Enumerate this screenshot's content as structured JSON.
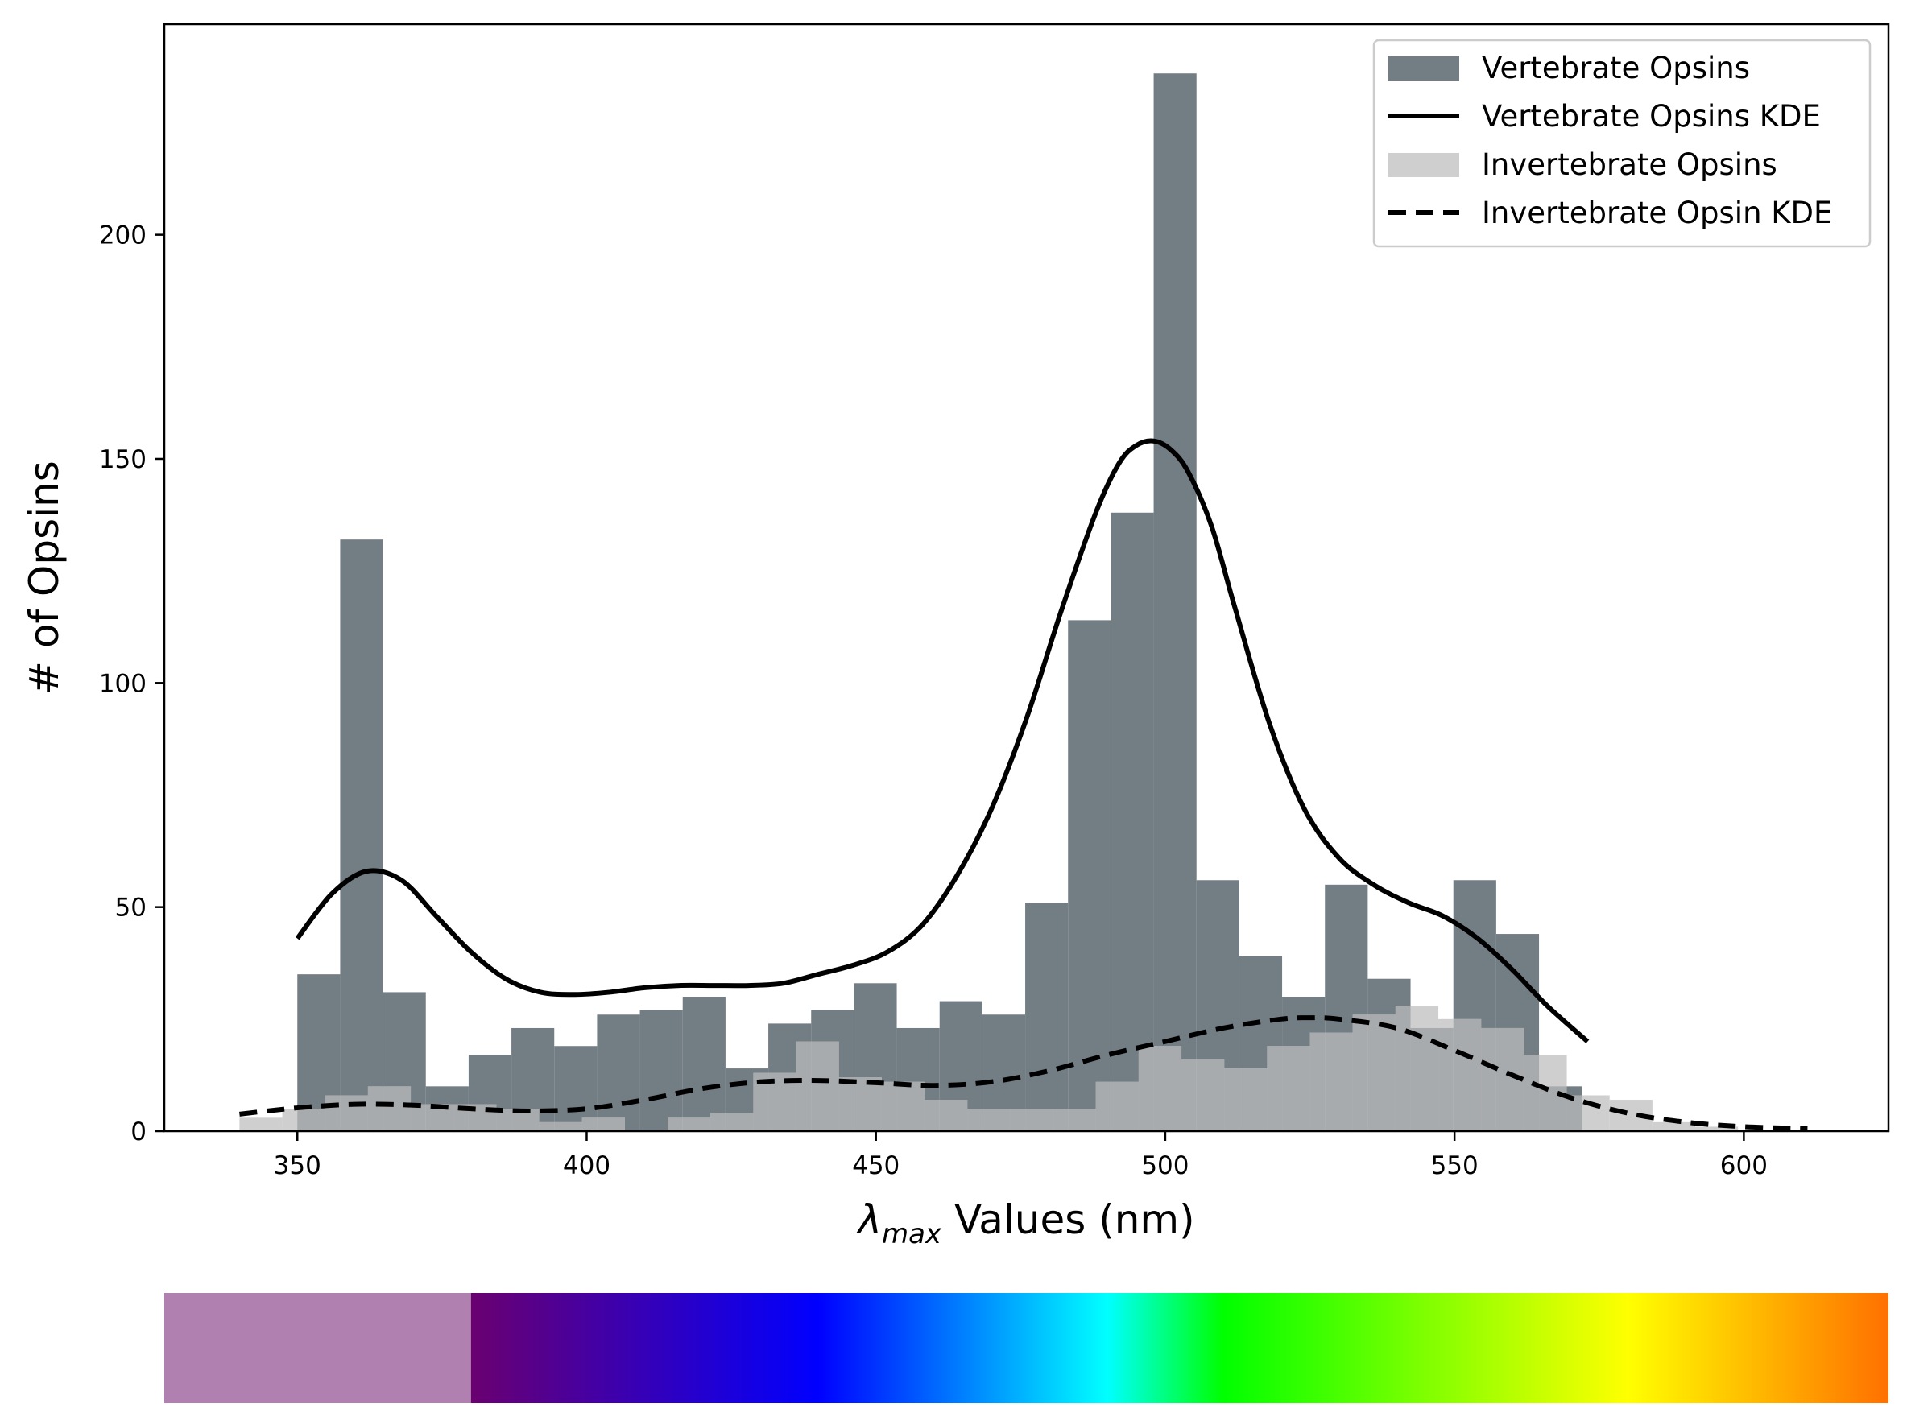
{
  "chart_data": {
    "type": "histogram",
    "xlabel": {
      "main": "λ",
      "sub": "max",
      "rest": " Values (nm)"
    },
    "ylabel": "# of Opsins",
    "xlim": [
      327,
      625
    ],
    "ylim": [
      0,
      247
    ],
    "xticks": [
      350,
      400,
      450,
      500,
      550,
      600
    ],
    "yticks": [
      0,
      50,
      100,
      150,
      200
    ],
    "grid": false,
    "legend_position": "top-right",
    "colors": {
      "vertebrate": "#737d84",
      "invertebrate": "#cfcfcf",
      "overlap": "#a8abae",
      "kde": "#000000"
    },
    "series": [
      {
        "name": "Vertebrate Opsins",
        "kind": "hist",
        "bin_edges": [
          350,
          357.4,
          364.8,
          372.2,
          379.6,
          387.0,
          394.4,
          401.8,
          409.2,
          416.6,
          424.0,
          431.4,
          438.8,
          446.2,
          453.6,
          461.0,
          468.4,
          475.8,
          483.2,
          490.6,
          498.0,
          505.4,
          512.8,
          520.2,
          527.6,
          535.0,
          542.4,
          549.8,
          557.2,
          564.6,
          572.0
        ],
        "counts": [
          35,
          132,
          31,
          10,
          17,
          23,
          19,
          26,
          27,
          30,
          14,
          24,
          27,
          33,
          23,
          29,
          26,
          51,
          114,
          138,
          236,
          56,
          39,
          30,
          55,
          34,
          23,
          56,
          44,
          10
        ]
      },
      {
        "name": "Invertebrate Opsins",
        "kind": "hist",
        "bin_edges": [
          340,
          347.4,
          354.8,
          362.2,
          369.6,
          377.0,
          384.4,
          391.8,
          399.2,
          406.6,
          414.0,
          421.4,
          428.8,
          436.2,
          443.6,
          451.0,
          458.4,
          465.8,
          473.2,
          480.6,
          488.0,
          495.4,
          502.8,
          510.2,
          517.6,
          525.0,
          532.4,
          539.8,
          547.2,
          554.6,
          562.0,
          569.4,
          576.8,
          584.2,
          591.6,
          599.0,
          606.4
        ],
        "counts": [
          3,
          5,
          8,
          10,
          6,
          6,
          5,
          2,
          3,
          0,
          3,
          4,
          13,
          20,
          12,
          11,
          7,
          5,
          5,
          5,
          11,
          19,
          16,
          14,
          19,
          22,
          26,
          28,
          25,
          23,
          17,
          8,
          7,
          2,
          1,
          0
        ]
      },
      {
        "name": "Vertebrate Opsins KDE",
        "kind": "line",
        "style": "solid",
        "x": [
          350,
          356,
          362,
          368,
          374,
          380,
          386,
          392,
          398,
          404,
          410,
          416,
          422,
          428,
          434,
          440,
          446,
          452,
          458,
          464,
          470,
          476,
          482,
          488,
          492,
          495,
          498,
          501,
          504,
          508,
          512,
          518,
          524,
          530,
          536,
          542,
          548,
          554,
          560,
          566,
          573
        ],
        "y": [
          43,
          53,
          58,
          56,
          48,
          40,
          34,
          31,
          30.5,
          31,
          32,
          32.5,
          32.5,
          32.5,
          33,
          35,
          37,
          40,
          46,
          57,
          72,
          92,
          116,
          138,
          149,
          153,
          154,
          152,
          147,
          135,
          117,
          91,
          72,
          61,
          55,
          51,
          48,
          43,
          36,
          28,
          20
        ]
      },
      {
        "name": "Invertebrate Opsin KDE",
        "kind": "line",
        "style": "dashed",
        "x": [
          340,
          350,
          360,
          370,
          380,
          390,
          400,
          410,
          420,
          430,
          440,
          450,
          460,
          470,
          480,
          490,
          500,
          510,
          520,
          525,
          530,
          540,
          550,
          560,
          570,
          580,
          590,
          600,
          611
        ],
        "y": [
          3.8,
          5.2,
          6.0,
          5.8,
          5.0,
          4.5,
          5.0,
          7.0,
          9.5,
          11.0,
          11.3,
          10.8,
          10.2,
          11.0,
          13.5,
          17.0,
          20.0,
          23.0,
          25.0,
          25.3,
          25.0,
          23.0,
          18.0,
          12.5,
          7.5,
          4.0,
          2.0,
          1.0,
          0.6
        ]
      }
    ],
    "legend": [
      {
        "label": "Vertebrate Opsins",
        "kind": "patch",
        "color": "#737d84"
      },
      {
        "label": "Vertebrate Opsins KDE",
        "kind": "line",
        "style": "solid"
      },
      {
        "label": "Invertebrate Opsins",
        "kind": "patch",
        "color": "#cfcfcf"
      },
      {
        "label": "Invertebrate Opsin KDE",
        "kind": "line",
        "style": "dashed"
      }
    ],
    "colorbar": {
      "uv_color": "#b081b0",
      "uv_end_nm": 380,
      "stops": [
        {
          "nm": 380,
          "color": "#6a0070"
        },
        {
          "nm": 440,
          "color": "#0000ff"
        },
        {
          "nm": 490,
          "color": "#00ffff"
        },
        {
          "nm": 510,
          "color": "#00ff00"
        },
        {
          "nm": 580,
          "color": "#ffff00"
        },
        {
          "nm": 625,
          "color": "#ff7000"
        }
      ]
    }
  }
}
